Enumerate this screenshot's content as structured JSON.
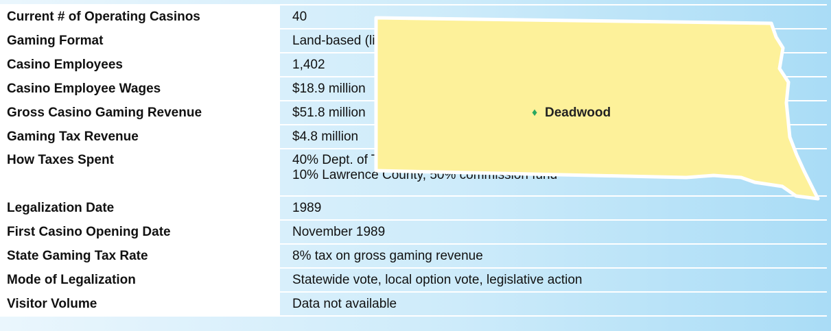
{
  "table": {
    "rows": [
      [
        "Current # of Operating Casinos",
        "40"
      ],
      [
        "Gaming Format",
        "Land-based (limited-stakes)"
      ],
      [
        "Casino Employees",
        "1,402"
      ],
      [
        "Casino Employee Wages",
        "$18.9 million"
      ],
      [
        "Gross Casino Gaming Revenue",
        "$51.8 million"
      ],
      [
        "Gaming Tax Revenue",
        "$4.8 million"
      ],
      [
        "How Taxes Spent",
        [
          "40% Dept. of Tourism,",
          "10% Lawrence County, 50% commission fund"
        ]
      ],
      [
        "Legalization Date",
        "1989"
      ],
      [
        "First Casino Opening Date",
        "November 1989"
      ],
      [
        "State Gaming Tax Rate",
        "8% tax on gross gaming revenue"
      ],
      [
        "Mode of Legalization",
        "Statewide vote, local option vote, legislative action"
      ],
      [
        "Visitor Volume",
        "Data not available"
      ]
    ]
  },
  "map": {
    "label": "Deadwood"
  }
}
